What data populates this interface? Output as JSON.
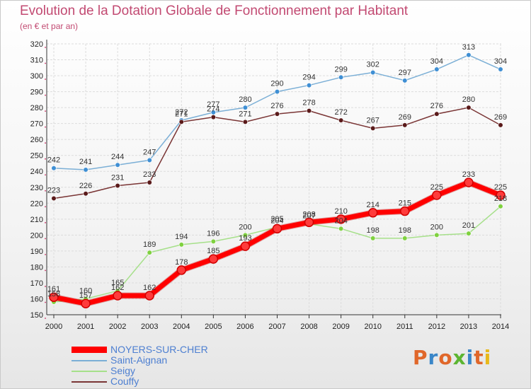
{
  "header": {
    "title": "Evolution de la Dotation Globale de Fonctionnement par Habitant",
    "subtitle": "(en € et par an)"
  },
  "colors": {
    "title": "#c24a72",
    "legend_text": "#4d7fd1",
    "grid": "#dcdcdc",
    "axis": "#333333",
    "tick_dots": "#cc3366"
  },
  "chart_data": {
    "type": "line",
    "x": [
      "2000",
      "2001",
      "2002",
      "2003",
      "2004",
      "2005",
      "2006",
      "2007",
      "2008",
      "2009",
      "2010",
      "2011",
      "2012",
      "2013",
      "2014"
    ],
    "ylim": [
      150,
      320
    ],
    "yticks": [
      150,
      160,
      170,
      180,
      190,
      200,
      210,
      220,
      230,
      240,
      250,
      260,
      270,
      280,
      290,
      300,
      310,
      320
    ],
    "grid": true,
    "legend_position": "bottom-left",
    "series": [
      {
        "name": "NOYERS-SUR-CHER",
        "color": "#ff0000",
        "marker": "#ff3b3b",
        "emphasis": true,
        "values": [
          161,
          157,
          162,
          162,
          178,
          185,
          193,
          204,
          208,
          210,
          214,
          215,
          225,
          233,
          225
        ]
      },
      {
        "name": "Saint-Aignan",
        "color": "#7bafd6",
        "marker": "#3f8fd4",
        "emphasis": false,
        "values": [
          242,
          241,
          244,
          247,
          272,
          277,
          280,
          290,
          294,
          299,
          302,
          297,
          304,
          313,
          304
        ]
      },
      {
        "name": "Seigy",
        "color": "#a6e08a",
        "marker": "#7fd13f",
        "emphasis": false,
        "values": [
          158,
          160,
          165,
          189,
          194,
          196,
          200,
          205,
          207,
          204,
          198,
          198,
          200,
          201,
          218
        ]
      },
      {
        "name": "Couffy",
        "color": "#7a3535",
        "marker": "#5a1a1a",
        "emphasis": false,
        "values": [
          223,
          226,
          231,
          233,
          271,
          274,
          271,
          276,
          278,
          272,
          267,
          269,
          276,
          280,
          269
        ]
      }
    ]
  },
  "logo": {
    "letters": [
      "P",
      "r",
      "o",
      "x",
      "i",
      "t",
      "i"
    ],
    "colors": [
      "#e0672a",
      "#3a86c8",
      "#e0672a",
      "#5cb531",
      "#3a86c8",
      "#e0672a",
      "#e8b91a"
    ]
  }
}
